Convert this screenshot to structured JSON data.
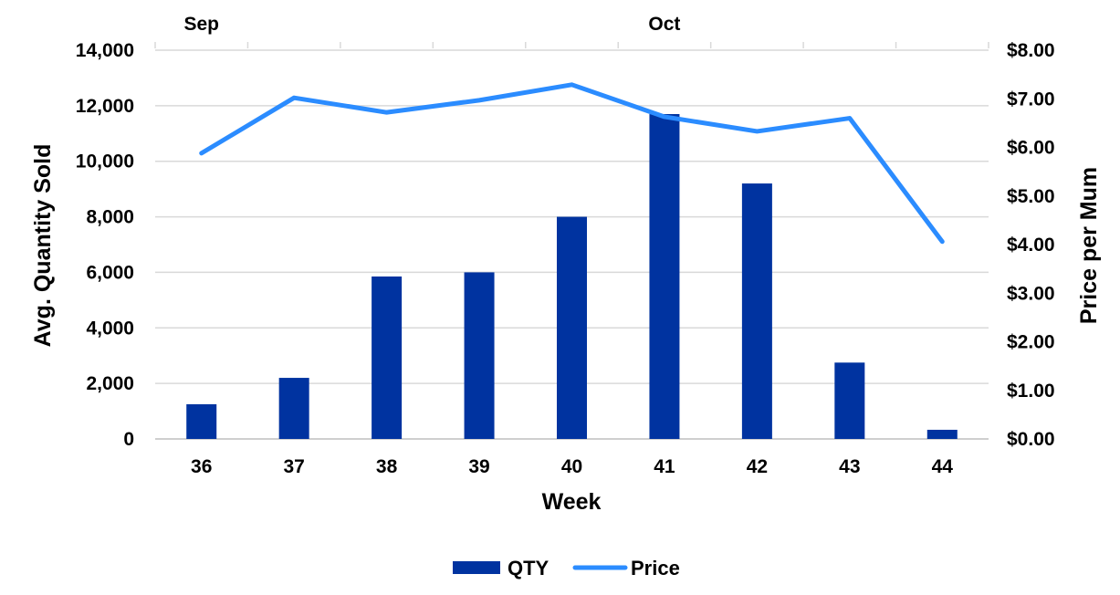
{
  "chart_data": {
    "type": "bar+line",
    "x": {
      "label": "Week",
      "categories": [
        "36",
        "37",
        "38",
        "39",
        "40",
        "41",
        "42",
        "43",
        "44"
      ],
      "month_labels": [
        {
          "label": "Sep",
          "at": "36"
        },
        {
          "label": "Oct",
          "at": "41"
        }
      ]
    },
    "y_left": {
      "label": "Avg. Quantity Sold",
      "ylim": [
        0,
        14000
      ],
      "ticks": [
        "0",
        "2,000",
        "4,000",
        "6,000",
        "8,000",
        "10,000",
        "12,000",
        "14,000"
      ]
    },
    "y_right": {
      "label": "Price per Mum",
      "ylim": [
        0,
        8
      ],
      "ticks": [
        "$0.00",
        "$1.00",
        "$2.00",
        "$3.00",
        "$4.00",
        "$5.00",
        "$6.00",
        "$7.00",
        "$8.00"
      ]
    },
    "series": [
      {
        "name": "QTY",
        "type": "bar",
        "axis": "left",
        "color": "#0033A0",
        "values": [
          1250,
          2200,
          5850,
          6000,
          8000,
          11700,
          9200,
          2750,
          330
        ]
      },
      {
        "name": "Price",
        "type": "line",
        "axis": "right",
        "color": "#2B8CFF",
        "values": [
          5.88,
          7.02,
          6.72,
          6.97,
          7.29,
          6.63,
          6.33,
          6.6,
          4.06
        ]
      }
    ],
    "grid": true,
    "legend": "bottom-center"
  }
}
